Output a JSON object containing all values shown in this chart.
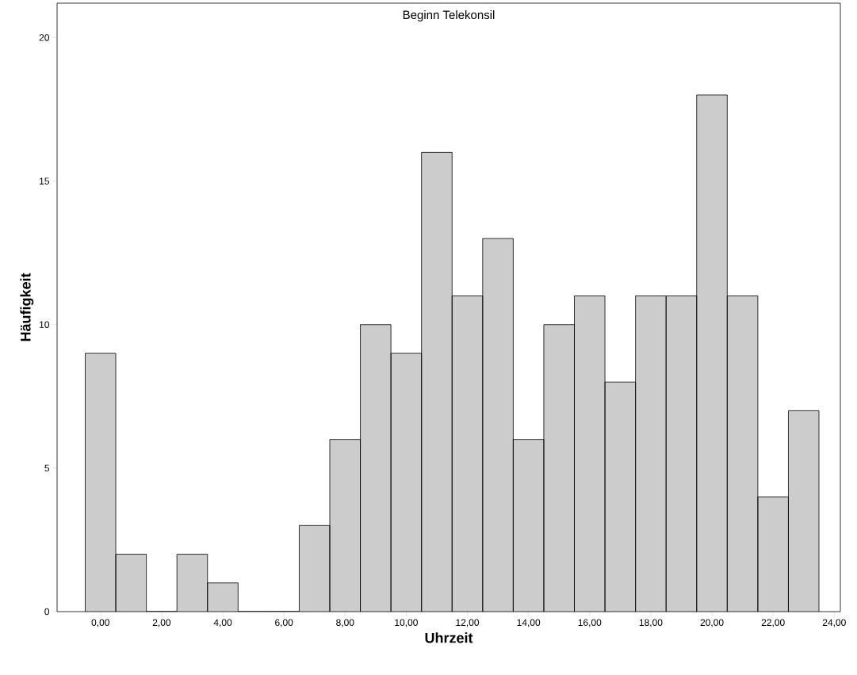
{
  "chart_data": {
    "type": "histogram",
    "title": "Beginn Telekonsil",
    "xlabel": "Uhrzeit",
    "ylabel": "Häufigkeit",
    "bins": [
      -0.5,
      0.5,
      1.5,
      2.5,
      3.5,
      4.5,
      5.5,
      6.5,
      7.5,
      8.5,
      9.5,
      10.5,
      11.5,
      12.5,
      13.5,
      14.5,
      15.5,
      16.5,
      17.5,
      18.5,
      19.5,
      20.5,
      21.5,
      22.5,
      23.5
    ],
    "values": [
      9,
      2,
      0,
      2,
      1,
      0,
      0,
      3,
      6,
      10,
      9,
      16,
      11,
      13,
      6,
      10,
      11,
      8,
      11,
      11,
      18,
      11,
      4,
      7
    ],
    "color": "#cccccc",
    "xlim": [
      -1.42,
      24.2
    ],
    "ylim": [
      0,
      21.2
    ],
    "xticks": [
      {
        "value": 0,
        "label": "0,00"
      },
      {
        "value": 2,
        "label": "2,00"
      },
      {
        "value": 4,
        "label": "4,00"
      },
      {
        "value": 6,
        "label": "6,00"
      },
      {
        "value": 8,
        "label": "8,00"
      },
      {
        "value": 10,
        "label": "10,00"
      },
      {
        "value": 12,
        "label": "12,00"
      },
      {
        "value": 14,
        "label": "14,00"
      },
      {
        "value": 16,
        "label": "16,00"
      },
      {
        "value": 18,
        "label": "18,00"
      },
      {
        "value": 20,
        "label": "20,00"
      },
      {
        "value": 22,
        "label": "22,00"
      },
      {
        "value": 24,
        "label": "24,00"
      }
    ],
    "yticks": [
      0,
      5,
      10,
      15,
      20
    ],
    "grid": false
  }
}
